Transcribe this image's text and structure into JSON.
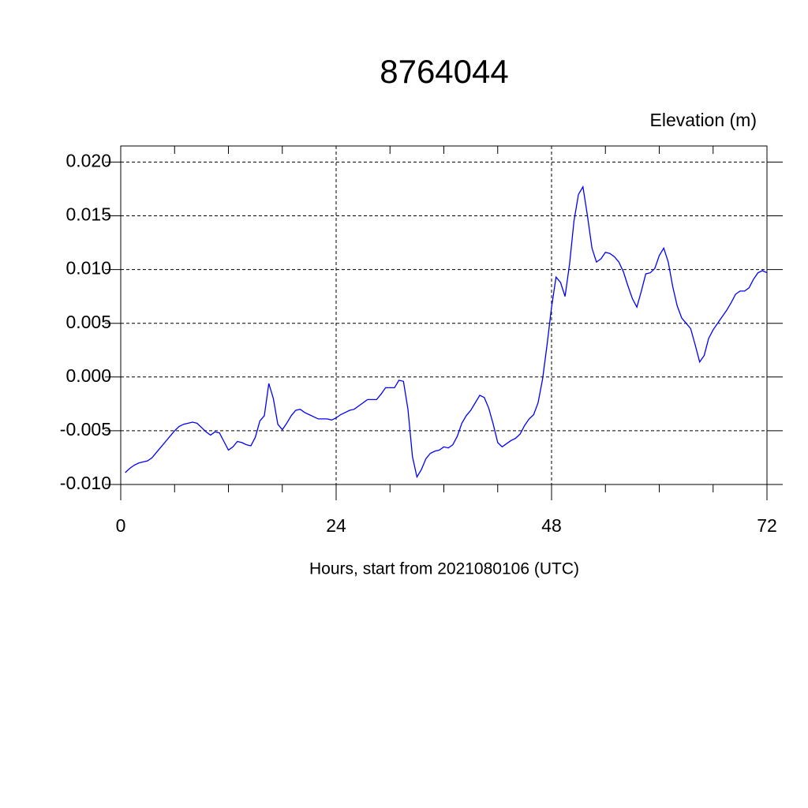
{
  "chart_data": {
    "type": "line",
    "title": "8764044",
    "ylabel": "Elevation (m)",
    "xlabel": "Hours, start from 2021080106 (UTC)",
    "color": "#0000ff",
    "grid": true,
    "xlim": [
      0,
      72
    ],
    "xticks": [
      0,
      24,
      48,
      72
    ],
    "xminorticks": [
      6,
      12,
      18,
      30,
      36,
      42,
      54,
      60,
      66
    ],
    "ylim": [
      -0.01,
      0.0215
    ],
    "yticks": [
      {
        "value": -0.01,
        "label": "-0.010"
      },
      {
        "value": -0.005,
        "label": "-0.005"
      },
      {
        "value": 0,
        "label": "0.000"
      },
      {
        "value": 0.005,
        "label": "0.005"
      },
      {
        "value": 0.01,
        "label": "0.010"
      },
      {
        "value": 0.015,
        "label": "0.015"
      },
      {
        "value": 0.02,
        "label": "0.020"
      }
    ],
    "x": [
      0.5,
      1,
      1.5,
      2,
      2.5,
      3,
      3.5,
      4,
      4.5,
      5,
      5.5,
      6,
      6.5,
      7,
      7.5,
      8,
      8.5,
      9,
      9.5,
      10,
      10.5,
      11,
      11.5,
      12,
      12.5,
      13,
      13.5,
      14,
      14.5,
      15,
      15.5,
      16,
      16.5,
      17,
      17.5,
      18,
      18.5,
      19,
      19.5,
      20,
      20.5,
      21,
      21.5,
      22,
      22.5,
      23,
      23.5,
      24,
      24.5,
      25,
      25.5,
      26,
      26.5,
      27,
      27.5,
      28,
      28.5,
      29,
      29.5,
      30,
      30.5,
      31,
      31.5,
      32,
      32.5,
      33,
      33.5,
      34,
      34.5,
      35,
      35.5,
      36,
      36.5,
      37,
      37.5,
      38,
      38.5,
      39,
      39.5,
      40,
      40.5,
      41,
      41.5,
      42,
      42.5,
      43,
      43.5,
      44,
      44.5,
      45,
      45.5,
      46,
      46.5,
      47,
      47.5,
      48,
      48.5,
      49,
      49.5,
      50,
      50.5,
      51,
      51.5,
      52,
      52.5,
      53,
      53.5,
      54,
      54.5,
      55,
      55.5,
      56,
      56.5,
      57,
      57.5,
      58,
      58.5,
      59,
      59.5,
      60,
      60.5,
      61,
      61.5,
      62,
      62.5,
      63,
      63.5,
      64,
      64.5,
      65,
      65.5,
      66,
      66.5,
      67,
      67.5,
      68,
      68.5,
      69,
      69.5,
      70,
      70.5,
      71,
      71.5,
      72
    ],
    "values": [
      -0.0089,
      -0.0085,
      -0.0082,
      -0.008,
      -0.0079,
      -0.0078,
      -0.0075,
      -0.007,
      -0.0065,
      -0.006,
      -0.0055,
      -0.005,
      -0.0046,
      -0.0044,
      -0.0043,
      -0.0042,
      -0.0043,
      -0.0047,
      -0.0051,
      -0.0054,
      -0.0051,
      -0.0052,
      -0.006,
      -0.0068,
      -0.0065,
      -0.006,
      -0.0061,
      -0.0063,
      -0.0064,
      -0.0056,
      -0.0041,
      -0.0036,
      -0.0006,
      -0.002,
      -0.0044,
      -0.0049,
      -0.0043,
      -0.0036,
      -0.0031,
      -0.003,
      -0.0033,
      -0.0035,
      -0.0037,
      -0.0039,
      -0.0039,
      -0.0039,
      -0.004,
      -0.0038,
      -0.0035,
      -0.0033,
      -0.0031,
      -0.003,
      -0.0027,
      -0.0024,
      -0.0021,
      -0.0021,
      -0.0021,
      -0.0016,
      -0.001,
      -0.001,
      -0.001,
      -0.0003,
      -0.0004,
      -0.003,
      -0.0074,
      -0.0093,
      -0.0086,
      -0.0076,
      -0.0071,
      -0.0069,
      -0.0068,
      -0.0065,
      -0.0066,
      -0.0063,
      -0.0055,
      -0.0043,
      -0.0036,
      -0.0031,
      -0.0024,
      -0.0017,
      -0.0019,
      -0.0029,
      -0.0044,
      -0.0061,
      -0.0065,
      -0.0062,
      -0.0059,
      -0.0057,
      -0.0053,
      -0.0045,
      -0.0039,
      -0.0035,
      -0.0024,
      -0.0002,
      0.003,
      0.0065,
      0.0093,
      0.0088,
      0.0075,
      0.0105,
      0.0145,
      0.017,
      0.0177,
      0.015,
      0.012,
      0.0107,
      0.011,
      0.0116,
      0.0115,
      0.0112,
      0.0107,
      0.0098,
      0.0085,
      0.0073,
      0.0065,
      0.008,
      0.0096,
      0.0097,
      0.0101,
      0.0113,
      0.012,
      0.0107,
      0.0084,
      0.0066,
      0.0055,
      0.005,
      0.0045,
      0.003,
      0.0014,
      0.002,
      0.0036,
      0.0044,
      0.005,
      0.0056,
      0.0062,
      0.0069,
      0.0077,
      0.008,
      0.008,
      0.0083,
      0.0091,
      0.0097,
      0.0099,
      0.0097
    ]
  }
}
